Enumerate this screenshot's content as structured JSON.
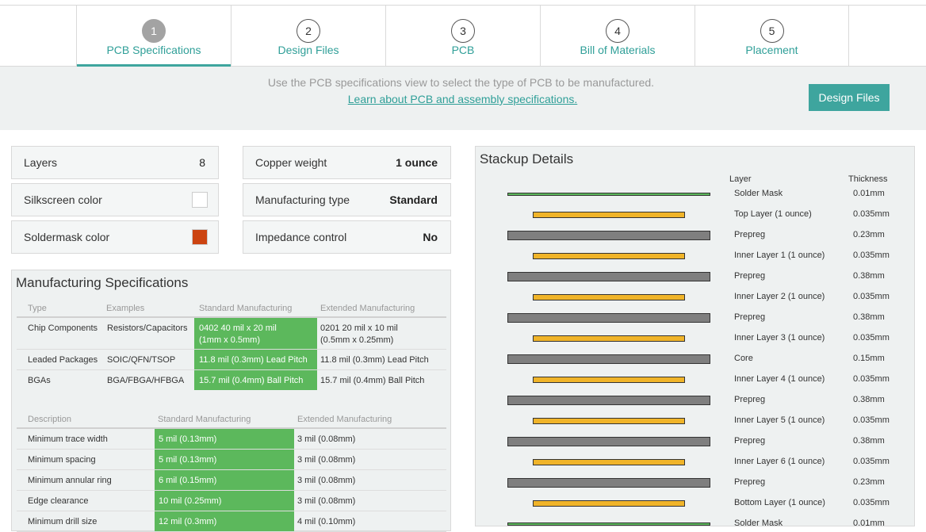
{
  "steps": [
    {
      "number": "1",
      "label": "PCB Specifications",
      "active": true
    },
    {
      "number": "2",
      "label": "Design Files",
      "active": false
    },
    {
      "number": "3",
      "label": "PCB",
      "active": false
    },
    {
      "number": "4",
      "label": "Bill of Materials",
      "active": false
    },
    {
      "number": "5",
      "label": "Placement",
      "active": false
    }
  ],
  "info": {
    "description": "Use the PCB specifications view to select the type of PCB to be manufactured.",
    "learn_link": "Learn about PCB and assembly specifications.",
    "next_button": "Design Files"
  },
  "specs": {
    "layers": {
      "label": "Layers",
      "value": "8"
    },
    "silkscreen": {
      "label": "Silkscreen color",
      "color": "#ffffff"
    },
    "soldermask": {
      "label": "Soldermask color",
      "color": "#cc4411"
    },
    "copper": {
      "label": "Copper weight",
      "value": "1 ounce"
    },
    "mfg_type": {
      "label": "Manufacturing type",
      "value": "Standard"
    },
    "impedance": {
      "label": "Impedance control",
      "value": "No"
    }
  },
  "manufacturing": {
    "title": "Manufacturing Specifications",
    "components_header": {
      "type": "Type",
      "examples": "Examples",
      "standard": "Standard Manufacturing",
      "extended": "Extended Manufacturing"
    },
    "components": [
      {
        "type": "Chip Components",
        "examples": "Resistors/Capacitors",
        "standard_1": "0402 40 mil x 20 mil",
        "standard_2": "(1mm x 0.5mm)",
        "extended_1": "0201 20 mil x 10 mil",
        "extended_2": "(0.5mm x 0.25mm)"
      },
      {
        "type": "Leaded Packages",
        "examples": "SOIC/QFN/TSOP",
        "standard": "11.8 mil (0.3mm) Lead Pitch",
        "extended": "11.8 mil (0.3mm) Lead Pitch"
      },
      {
        "type": "BGAs",
        "examples": "BGA/FBGA/HFBGA",
        "standard": "15.7 mil (0.4mm) Ball Pitch",
        "extended": "15.7 mil (0.4mm) Ball Pitch"
      }
    ],
    "rules_header": {
      "description": "Description",
      "standard": "Standard Manufacturing",
      "extended": "Extended Manufacturing"
    },
    "rules": [
      {
        "description": "Minimum trace width",
        "standard": "5 mil (0.13mm)",
        "extended": "3 mil (0.08mm)"
      },
      {
        "description": "Minimum spacing",
        "standard": "5 mil (0.13mm)",
        "extended": "3 mil (0.08mm)"
      },
      {
        "description": "Minimum annular ring",
        "standard": "6 mil (0.15mm)",
        "extended": "3 mil (0.08mm)"
      },
      {
        "description": "Edge clearance",
        "standard": "10 mil (0.25mm)",
        "extended": "3 mil (0.08mm)"
      },
      {
        "description": "Minimum drill size",
        "standard": "12 mil (0.3mm)",
        "extended": "4 mil (0.10mm)"
      }
    ]
  },
  "stackup": {
    "title": "Stackup Details",
    "col_layer": "Layer",
    "col_thickness": "Thickness",
    "colors": {
      "mask": "#5cb85c",
      "copper": "#f0b429",
      "dielectric": "#7f7f7f"
    },
    "layers": [
      {
        "name": "Solder Mask",
        "thickness": "0.01mm",
        "kind": "mask"
      },
      {
        "name": "Top Layer (1 ounce)",
        "thickness": "0.035mm",
        "kind": "copper"
      },
      {
        "name": "Prepreg",
        "thickness": "0.23mm",
        "kind": "dielectric"
      },
      {
        "name": "Inner Layer 1 (1 ounce)",
        "thickness": "0.035mm",
        "kind": "copper"
      },
      {
        "name": "Prepreg",
        "thickness": "0.38mm",
        "kind": "dielectric"
      },
      {
        "name": "Inner Layer 2 (1 ounce)",
        "thickness": "0.035mm",
        "kind": "copper"
      },
      {
        "name": "Prepreg",
        "thickness": "0.38mm",
        "kind": "dielectric"
      },
      {
        "name": "Inner Layer 3 (1 ounce)",
        "thickness": "0.035mm",
        "kind": "copper"
      },
      {
        "name": "Core",
        "thickness": "0.15mm",
        "kind": "dielectric"
      },
      {
        "name": "Inner Layer 4 (1 ounce)",
        "thickness": "0.035mm",
        "kind": "copper"
      },
      {
        "name": "Prepreg",
        "thickness": "0.38mm",
        "kind": "dielectric"
      },
      {
        "name": "Inner Layer 5 (1 ounce)",
        "thickness": "0.035mm",
        "kind": "copper"
      },
      {
        "name": "Prepreg",
        "thickness": "0.38mm",
        "kind": "dielectric"
      },
      {
        "name": "Inner Layer 6 (1 ounce)",
        "thickness": "0.035mm",
        "kind": "copper"
      },
      {
        "name": "Prepreg",
        "thickness": "0.23mm",
        "kind": "dielectric"
      },
      {
        "name": "Bottom Layer (1 ounce)",
        "thickness": "0.035mm",
        "kind": "copper"
      },
      {
        "name": "Solder Mask",
        "thickness": "0.01mm",
        "kind": "mask"
      }
    ]
  }
}
